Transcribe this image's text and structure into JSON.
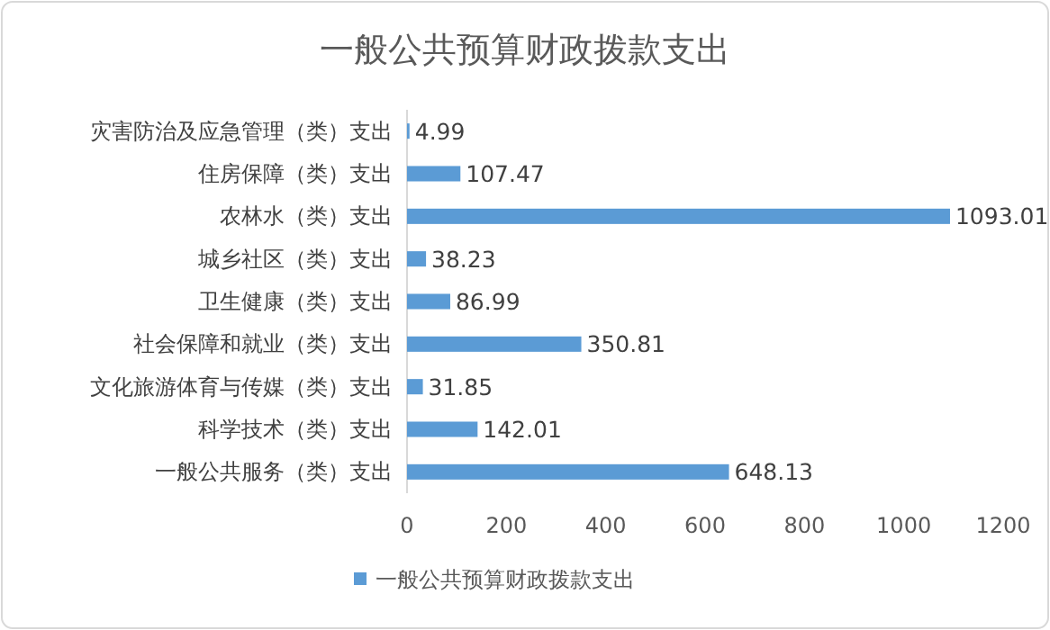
{
  "chart_data": {
    "type": "bar",
    "orientation": "horizontal",
    "title": "一般公共预算财政拨款支出",
    "categories": [
      "灾害防治及应急管理（类）支出",
      "住房保障（类）支出",
      "农林水（类）支出",
      "城乡社区（类）支出",
      "卫生健康（类）支出",
      "社会保障和就业（类）支出",
      "文化旅游体育与传媒（类）支出",
      "科学技术（类）支出",
      "一般公共服务（类）支出"
    ],
    "series": [
      {
        "name": "一般公共预算财政拨款支出",
        "color": "#5b9bd5",
        "values": [
          4.99,
          107.47,
          1093.01,
          38.23,
          86.99,
          350.81,
          31.85,
          142.01,
          648.13
        ]
      }
    ],
    "xlim": [
      0,
      1200
    ],
    "xticks": [
      0,
      200,
      400,
      600,
      800,
      1000,
      1200
    ],
    "data_labels": true,
    "legend": "bottom"
  }
}
